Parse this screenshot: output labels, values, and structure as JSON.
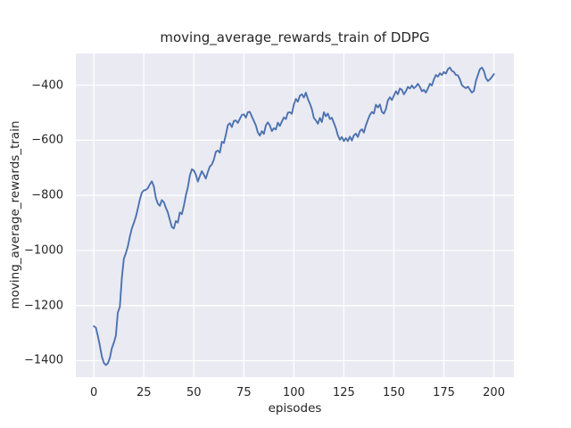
{
  "chart_data": {
    "type": "line",
    "title": "moving_average_rewards_train of DDPG",
    "xlabel": "episodes",
    "ylabel": "moving_average_rewards_train",
    "legend_position": "none",
    "grid": true,
    "xlim": [
      -9,
      210
    ],
    "ylim": [
      -1460,
      -285
    ],
    "xticks": [
      0,
      25,
      50,
      75,
      100,
      125,
      150,
      175,
      200
    ],
    "yticks": [
      -400,
      -600,
      -800,
      -1000,
      -1200,
      -1400
    ],
    "line_color": "#4c72b0",
    "plot_bg_color": "#eaeaf2",
    "grid_color": "#ffffff",
    "text_color": "#262626",
    "x_start": 0,
    "x_step": 1,
    "values": [
      -1275,
      -1280,
      -1310,
      -1345,
      -1385,
      -1408,
      -1416,
      -1410,
      -1390,
      -1355,
      -1335,
      -1310,
      -1225,
      -1205,
      -1100,
      -1030,
      -1010,
      -985,
      -950,
      -920,
      -900,
      -878,
      -848,
      -815,
      -790,
      -782,
      -780,
      -774,
      -760,
      -749,
      -768,
      -809,
      -830,
      -838,
      -817,
      -825,
      -845,
      -862,
      -889,
      -915,
      -920,
      -893,
      -899,
      -862,
      -868,
      -838,
      -800,
      -771,
      -728,
      -705,
      -710,
      -725,
      -750,
      -730,
      -712,
      -725,
      -739,
      -715,
      -695,
      -688,
      -670,
      -642,
      -637,
      -645,
      -605,
      -610,
      -580,
      -545,
      -538,
      -552,
      -530,
      -528,
      -537,
      -522,
      -508,
      -506,
      -518,
      -498,
      -497,
      -514,
      -530,
      -546,
      -572,
      -583,
      -567,
      -577,
      -546,
      -535,
      -546,
      -567,
      -556,
      -561,
      -536,
      -548,
      -532,
      -517,
      -523,
      -500,
      -498,
      -504,
      -470,
      -450,
      -460,
      -438,
      -433,
      -445,
      -427,
      -450,
      -467,
      -487,
      -519,
      -528,
      -540,
      -519,
      -534,
      -498,
      -513,
      -503,
      -523,
      -518,
      -537,
      -556,
      -582,
      -598,
      -588,
      -603,
      -592,
      -603,
      -587,
      -601,
      -582,
      -576,
      -588,
      -567,
      -560,
      -572,
      -546,
      -526,
      -508,
      -497,
      -503,
      -471,
      -481,
      -470,
      -497,
      -503,
      -487,
      -455,
      -444,
      -454,
      -438,
      -422,
      -433,
      -412,
      -417,
      -433,
      -422,
      -406,
      -412,
      -401,
      -411,
      -405,
      -395,
      -406,
      -422,
      -417,
      -427,
      -412,
      -395,
      -401,
      -379,
      -363,
      -369,
      -357,
      -363,
      -352,
      -358,
      -342,
      -336,
      -348,
      -352,
      -363,
      -364,
      -379,
      -400,
      -406,
      -411,
      -405,
      -416,
      -427,
      -421,
      -385,
      -363,
      -342,
      -336,
      -348,
      -374,
      -385,
      -379,
      -370,
      -360
    ]
  }
}
